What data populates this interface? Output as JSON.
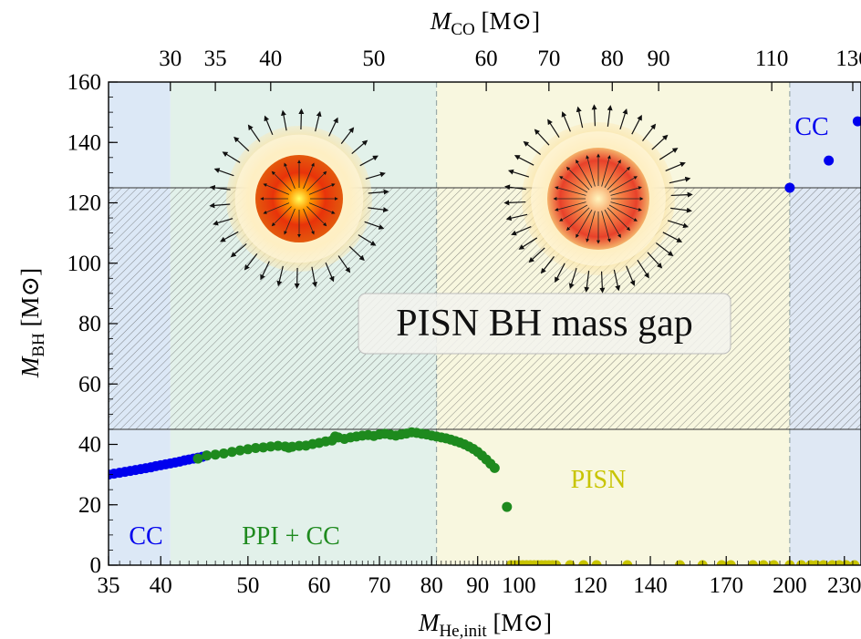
{
  "chart_data": {
    "type": "scatter",
    "title": "",
    "x_axis": {
      "scale": "log",
      "range": [
        35,
        240
      ],
      "ticks": [
        35,
        40,
        50,
        60,
        70,
        80,
        90,
        100,
        120,
        140,
        170,
        200,
        230
      ],
      "label_symbol": "M",
      "label_subscript": "He,init",
      "label_unit": "[M⊙]"
    },
    "x2_axis": {
      "label_symbol": "M",
      "label_subscript": "CO",
      "label_unit": "[M⊙]",
      "ticks": [
        {
          "label": "30",
          "x_he": 41
        },
        {
          "label": "35",
          "x_he": 46
        },
        {
          "label": "40",
          "x_he": 53
        },
        {
          "label": "50",
          "x_he": 69
        },
        {
          "label": "60",
          "x_he": 92
        },
        {
          "label": "70",
          "x_he": 108
        },
        {
          "label": "80",
          "x_he": 127
        },
        {
          "label": "90",
          "x_he": 143
        },
        {
          "label": "110",
          "x_he": 191
        },
        {
          "label": "130",
          "x_he": 235
        }
      ]
    },
    "y_axis": {
      "range": [
        0,
        160
      ],
      "ticks": [
        0,
        20,
        40,
        60,
        80,
        100,
        120,
        140,
        160
      ],
      "label_symbol": "M",
      "label_subscript": "BH",
      "label_unit": "[M⊙]"
    },
    "regions": [
      {
        "name": "CC",
        "x_from": 35,
        "x_to": 41,
        "color": "#dce8f6"
      },
      {
        "name": "PPI + CC",
        "x_from": 41,
        "x_to": 81,
        "color": "#e2f1ea"
      },
      {
        "name": "PISN",
        "x_from": 81,
        "x_to": 200,
        "color": "#f8f7df"
      },
      {
        "name": "CC",
        "x_from": 200,
        "x_to": 240,
        "color": "#dfe8f4"
      }
    ],
    "mass_gap": {
      "label": "PISN BH mass gap",
      "y_from": 45,
      "y_to": 125
    },
    "series": [
      {
        "name": "CC",
        "color": "#0000ee",
        "points": [
          [
            35,
            30
          ],
          [
            35.5,
            30.3
          ],
          [
            36,
            30.6
          ],
          [
            36.5,
            30.9
          ],
          [
            37,
            31.2
          ],
          [
            37.5,
            31.5
          ],
          [
            38,
            31.8
          ],
          [
            38.5,
            32.1
          ],
          [
            39,
            32.4
          ],
          [
            39.5,
            32.8
          ],
          [
            40,
            33.1
          ],
          [
            40.5,
            33.4
          ],
          [
            41,
            33.7
          ],
          [
            41.5,
            34
          ],
          [
            42,
            34.3
          ],
          [
            42.5,
            34.7
          ],
          [
            43,
            35
          ],
          [
            43.5,
            35.3
          ],
          [
            44,
            35.6
          ],
          [
            44.5,
            35.9
          ],
          [
            45,
            36.3
          ]
        ]
      },
      {
        "name": "PPI + CC",
        "color": "#1e8a1e",
        "points": [
          [
            44,
            35.3
          ],
          [
            45,
            36.3
          ],
          [
            46,
            36.6
          ],
          [
            47,
            37
          ],
          [
            48,
            37.5
          ],
          [
            49,
            38
          ],
          [
            50,
            38.4
          ],
          [
            51,
            38.8
          ],
          [
            52,
            39
          ],
          [
            53,
            39.3
          ],
          [
            54,
            39.5
          ],
          [
            55,
            39.3
          ],
          [
            55.5,
            38.9
          ],
          [
            56,
            39.2
          ],
          [
            57,
            39.5
          ],
          [
            58,
            39.6
          ],
          [
            59,
            40.1
          ],
          [
            60,
            40.5
          ],
          [
            61,
            41
          ],
          [
            62,
            41.3
          ],
          [
            62.5,
            42.6
          ],
          [
            63,
            42.3
          ],
          [
            64,
            41.8
          ],
          [
            65,
            42.3
          ],
          [
            66,
            42.6
          ],
          [
            67,
            42.9
          ],
          [
            68,
            43.1
          ],
          [
            69,
            42.8
          ],
          [
            70,
            43.3
          ],
          [
            71,
            43.5
          ],
          [
            72,
            43.2
          ],
          [
            73,
            42.9
          ],
          [
            74,
            43.3
          ],
          [
            75,
            43.6
          ],
          [
            76,
            44
          ],
          [
            77,
            43.8
          ],
          [
            78,
            43.5
          ],
          [
            79,
            43.3
          ],
          [
            80,
            42.9
          ],
          [
            81,
            42.6
          ],
          [
            82,
            42.3
          ],
          [
            83,
            42
          ],
          [
            84,
            41.6
          ],
          [
            85,
            41.1
          ],
          [
            86,
            40.6
          ],
          [
            87,
            40
          ],
          [
            88,
            39.3
          ],
          [
            89,
            38.5
          ],
          [
            90,
            37.5
          ],
          [
            91,
            36.3
          ],
          [
            92,
            35
          ],
          [
            93,
            33.6
          ],
          [
            94,
            32.2
          ],
          [
            97,
            19.3
          ]
        ]
      },
      {
        "name": "PISN",
        "color": "#c8c400",
        "points": [
          [
            98,
            0
          ],
          [
            99,
            0
          ],
          [
            100,
            0
          ],
          [
            101,
            0
          ],
          [
            102,
            0
          ],
          [
            103,
            0
          ],
          [
            104,
            0
          ],
          [
            105,
            0
          ],
          [
            106,
            0
          ],
          [
            107,
            0
          ],
          [
            108,
            0
          ],
          [
            109,
            0
          ],
          [
            110,
            0
          ],
          [
            114,
            0
          ],
          [
            118,
            0
          ],
          [
            122,
            0
          ],
          [
            132,
            0
          ],
          [
            151,
            0
          ],
          [
            160,
            0
          ],
          [
            168,
            0
          ],
          [
            172,
            0
          ],
          [
            182,
            0
          ],
          [
            187,
            0
          ],
          [
            192,
            0
          ],
          [
            200,
            0
          ],
          [
            206,
            0
          ],
          [
            211,
            0
          ],
          [
            214,
            0
          ],
          [
            218,
            0
          ],
          [
            223,
            0
          ],
          [
            227,
            0
          ],
          [
            231,
            0
          ],
          [
            236,
            0
          ]
        ]
      },
      {
        "name": "CC",
        "color": "#0000ee",
        "points": [
          [
            200,
            125
          ],
          [
            221,
            134
          ],
          [
            238,
            147
          ]
        ]
      }
    ]
  }
}
